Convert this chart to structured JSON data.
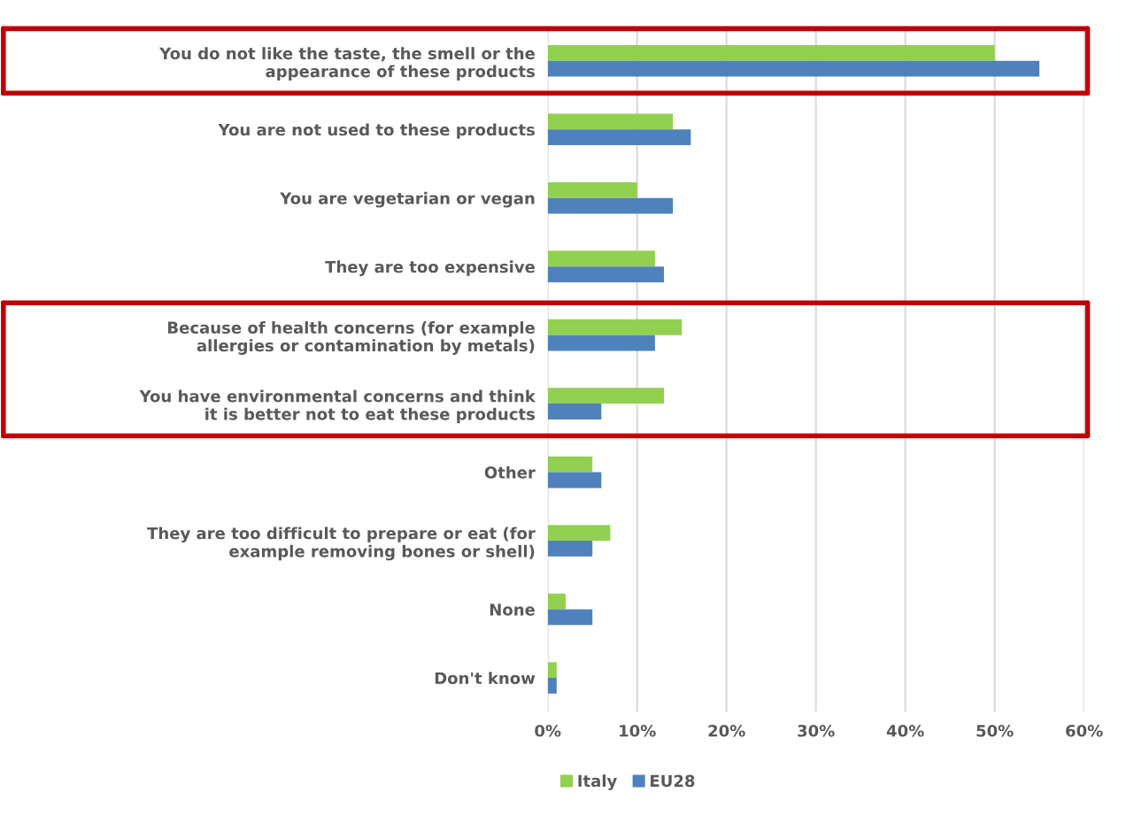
{
  "chart_data": {
    "type": "bar",
    "orientation": "horizontal",
    "categories": [
      "You do not like the taste, the smell or the\nappearance of these products",
      "You are not used to these products",
      "You are vegetarian or vegan",
      "They are too expensive",
      "Because of health concerns (for example\nallergies or contamination by metals)",
      "You have environmental concerns and think\nit is better not to eat these products",
      "Other",
      "They are too difficult to prepare or eat (for\nexample removing bones or shell)",
      "None",
      "Don't know"
    ],
    "series": [
      {
        "name": "Italy",
        "color": "#92d050",
        "values": [
          50,
          14,
          10,
          12,
          15,
          13,
          5,
          7,
          2,
          1
        ]
      },
      {
        "name": "EU28",
        "color": "#4f81bd",
        "values": [
          55,
          16,
          14,
          13,
          12,
          6,
          6,
          5,
          5,
          1
        ]
      }
    ],
    "xlim": [
      0,
      60
    ],
    "xticks": [
      {
        "value": 0,
        "label": "0%"
      },
      {
        "value": 10,
        "label": "10%"
      },
      {
        "value": 20,
        "label": "20%"
      },
      {
        "value": 30,
        "label": "30%"
      },
      {
        "value": 40,
        "label": "40%"
      },
      {
        "value": 50,
        "label": "50%"
      },
      {
        "value": 60,
        "label": "60%"
      }
    ],
    "grid": "x",
    "legend": "bottom"
  }
}
